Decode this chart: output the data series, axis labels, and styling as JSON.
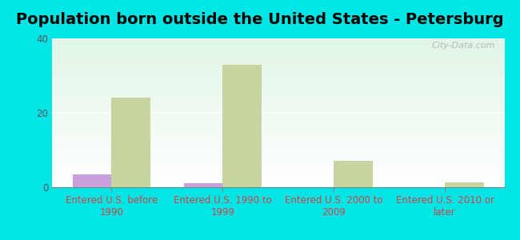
{
  "title": "Population born outside the United States - Petersburg",
  "categories": [
    "Entered U.S. before\n1990",
    "Entered U.S. 1990 to\n1999",
    "Entered U.S. 2000 to\n2009",
    "Entered U.S. 2010 or\nlater"
  ],
  "native_values": [
    3.5,
    1.0,
    0,
    0
  ],
  "foreign_values": [
    24,
    33,
    7,
    1.2
  ],
  "native_color": "#c9a0dc",
  "foreign_color": "#c8d4a0",
  "background_color": "#00e5e5",
  "plot_bg_start": "#ffffff",
  "plot_bg_end": "#d4edda",
  "ylim": [
    0,
    40
  ],
  "yticks": [
    0,
    20,
    40
  ],
  "bar_width": 0.35,
  "watermark": "City-Data.com",
  "title_fontsize": 14,
  "tick_fontsize": 8.5,
  "legend_fontsize": 10
}
